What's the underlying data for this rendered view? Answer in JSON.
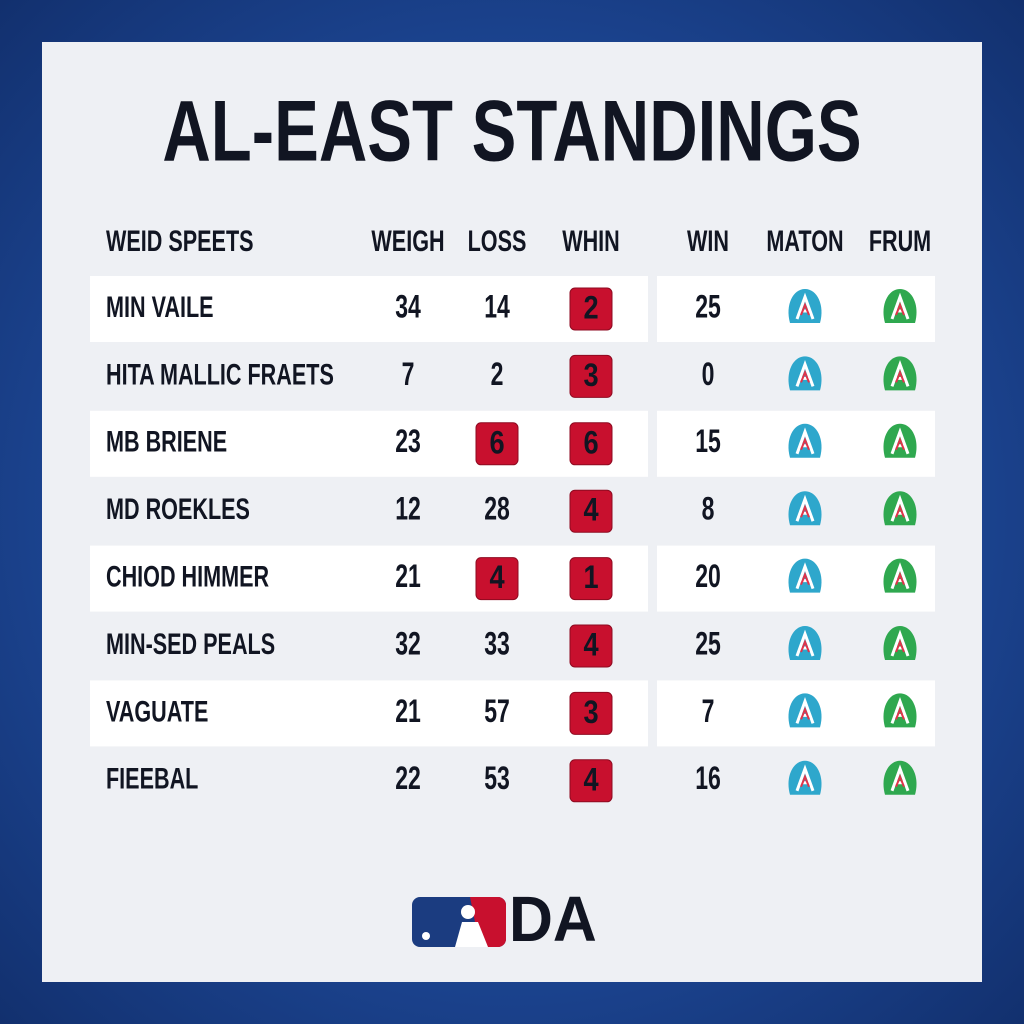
{
  "title": "AL-EAST STANDINGS",
  "table": {
    "headers": [
      "WEID SPEETS",
      "WEIGH",
      "LOSS",
      "WHIN",
      "WIN",
      "MATON",
      "FRUM"
    ],
    "rows": [
      {
        "team": "MIN VAILE",
        "weigh": 34,
        "loss": 14,
        "whin": 2,
        "win": 25,
        "loss_badge": false
      },
      {
        "team": "HITA MALLIC FRAETS",
        "weigh": 7,
        "loss": 2,
        "whin": 3,
        "win": 0,
        "loss_badge": false
      },
      {
        "team": "MB BRIENE",
        "weigh": 23,
        "loss": 6,
        "whin": 6,
        "win": 15,
        "loss_badge": true
      },
      {
        "team": "MD ROEKLES",
        "weigh": 12,
        "loss": 28,
        "whin": 4,
        "win": 8,
        "loss_badge": false
      },
      {
        "team": "CHIOD HIMMER",
        "weigh": 21,
        "loss": 4,
        "whin": 1,
        "win": 20,
        "loss_badge": true
      },
      {
        "team": "MIN-SED PEALS",
        "weigh": 32,
        "loss": 33,
        "whin": 4,
        "win": 25,
        "loss_badge": false
      },
      {
        "team": "VAGUATE",
        "weigh": 21,
        "loss": 57,
        "whin": 3,
        "win": 7,
        "loss_badge": false
      },
      {
        "team": "FIEEBAL",
        "weigh": 22,
        "loss": 53,
        "whin": 4,
        "win": 16,
        "loss_badge": false
      }
    ]
  },
  "footer": {
    "logo_text": "DA"
  }
}
